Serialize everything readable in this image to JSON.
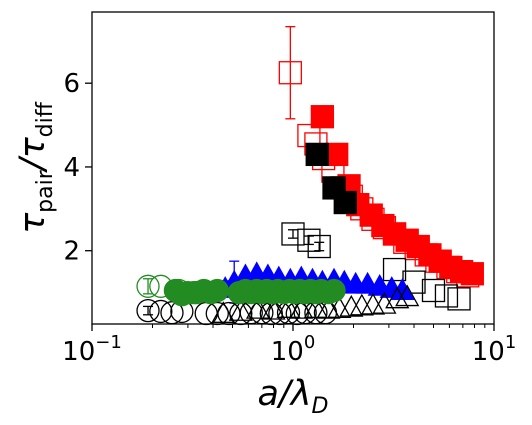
{
  "chart_data": {
    "type": "scatter",
    "x_scale": "log",
    "xlim": [
      0.1,
      10
    ],
    "ylim": [
      0.25,
      7.7
    ],
    "x_ticks": [
      {
        "value": 0.1,
        "base": "10",
        "exp": "−1"
      },
      {
        "value": 1,
        "base": "10",
        "exp": "0"
      },
      {
        "value": 10,
        "base": "10",
        "exp": "1"
      }
    ],
    "y_ticks": [
      {
        "value": 2,
        "label": "2"
      },
      {
        "value": 4,
        "label": "4"
      },
      {
        "value": 6,
        "label": "6"
      }
    ],
    "xlabel": {
      "main": "a/λ",
      "sub": "D"
    },
    "ylabel": {
      "tau": "τ",
      "sub1": "pair",
      "slash": "/",
      "sub2": "diff"
    },
    "grid": false,
    "series": [
      {
        "marker": "square",
        "filled": false,
        "color": "#ff0000",
        "points": [
          {
            "x": 0.97,
            "y": 6.25,
            "err": 1.1
          },
          {
            "x": 1.2,
            "y": 4.75
          },
          {
            "x": 1.3,
            "y": 4.55
          },
          {
            "x": 1.42,
            "y": 4.2
          },
          {
            "x": 1.58,
            "y": 3.9
          },
          {
            "x": 1.75,
            "y": 3.5
          },
          {
            "x": 1.95,
            "y": 3.3
          },
          {
            "x": 2.2,
            "y": 3.0
          },
          {
            "x": 2.5,
            "y": 2.75
          },
          {
            "x": 2.85,
            "y": 2.55
          },
          {
            "x": 3.2,
            "y": 2.4
          },
          {
            "x": 3.6,
            "y": 2.2
          },
          {
            "x": 4.1,
            "y": 2.05
          },
          {
            "x": 4.6,
            "y": 1.9
          },
          {
            "x": 5.2,
            "y": 1.75
          },
          {
            "x": 5.9,
            "y": 1.6
          },
          {
            "x": 6.6,
            "y": 1.5
          },
          {
            "x": 7.4,
            "y": 1.4
          }
        ]
      },
      {
        "marker": "square",
        "filled": true,
        "color": "#ff0000",
        "points": [
          {
            "x": 1.4,
            "y": 5.2
          },
          {
            "x": 1.65,
            "y": 4.3
          },
          {
            "x": 1.9,
            "y": 3.55
          },
          {
            "x": 2.1,
            "y": 3.1
          },
          {
            "x": 2.45,
            "y": 2.85
          },
          {
            "x": 2.8,
            "y": 2.6
          },
          {
            "x": 3.2,
            "y": 2.4
          },
          {
            "x": 3.7,
            "y": 2.25
          },
          {
            "x": 4.2,
            "y": 2.1
          },
          {
            "x": 4.8,
            "y": 1.9
          },
          {
            "x": 5.4,
            "y": 1.75
          },
          {
            "x": 6.1,
            "y": 1.6
          },
          {
            "x": 6.9,
            "y": 1.5
          },
          {
            "x": 7.8,
            "y": 1.45
          }
        ]
      },
      {
        "marker": "square",
        "filled": true,
        "color": "#000000",
        "points": [
          {
            "x": 1.32,
            "y": 4.3
          },
          {
            "x": 1.6,
            "y": 3.5
          },
          {
            "x": 1.82,
            "y": 3.15
          }
        ]
      },
      {
        "marker": "square",
        "filled": false,
        "color": "#000000",
        "points": [
          {
            "x": 1.0,
            "y": 2.4,
            "err": 0.1
          },
          {
            "x": 1.2,
            "y": 2.25,
            "err": 0.1
          },
          {
            "x": 1.35,
            "y": 2.1,
            "err": 0.1
          },
          {
            "x": 3.2,
            "y": 1.55
          },
          {
            "x": 4.0,
            "y": 1.25
          },
          {
            "x": 5.0,
            "y": 1.05
          },
          {
            "x": 5.8,
            "y": 0.92
          },
          {
            "x": 6.7,
            "y": 0.85
          }
        ]
      },
      {
        "marker": "triangle",
        "filled": true,
        "color": "#0000ff",
        "points": [
          {
            "x": 0.46,
            "y": 1.1,
            "err": 0.18
          },
          {
            "x": 0.51,
            "y": 1.25,
            "err": 0.5
          },
          {
            "x": 0.58,
            "y": 1.4
          },
          {
            "x": 0.66,
            "y": 1.45
          },
          {
            "x": 0.75,
            "y": 1.4
          },
          {
            "x": 0.85,
            "y": 1.35
          },
          {
            "x": 0.97,
            "y": 1.3
          },
          {
            "x": 1.1,
            "y": 1.35
          },
          {
            "x": 1.25,
            "y": 1.3
          },
          {
            "x": 1.4,
            "y": 1.25
          },
          {
            "x": 1.6,
            "y": 1.3
          },
          {
            "x": 1.8,
            "y": 1.25
          },
          {
            "x": 2.05,
            "y": 1.2
          },
          {
            "x": 2.35,
            "y": 1.2
          },
          {
            "x": 2.7,
            "y": 1.15
          },
          {
            "x": 3.1,
            "y": 1.1
          },
          {
            "x": 3.5,
            "y": 1.05
          }
        ]
      },
      {
        "marker": "triangle",
        "filled": false,
        "color": "#000000",
        "points": [
          {
            "x": 0.45,
            "y": 0.5
          },
          {
            "x": 0.55,
            "y": 0.55
          },
          {
            "x": 0.67,
            "y": 0.6
          },
          {
            "x": 0.8,
            "y": 0.58
          },
          {
            "x": 0.95,
            "y": 0.62
          },
          {
            "x": 1.1,
            "y": 0.6
          },
          {
            "x": 1.3,
            "y": 0.62
          },
          {
            "x": 1.5,
            "y": 0.6
          },
          {
            "x": 1.7,
            "y": 0.62
          },
          {
            "x": 1.95,
            "y": 0.65
          },
          {
            "x": 2.2,
            "y": 0.68
          },
          {
            "x": 2.5,
            "y": 0.7
          },
          {
            "x": 2.85,
            "y": 0.72
          },
          {
            "x": 3.3,
            "y": 0.85
          },
          {
            "x": 3.7,
            "y": 0.9
          }
        ]
      },
      {
        "marker": "circle",
        "filled": false,
        "color": "#000000",
        "points": [
          {
            "x": 0.19,
            "y": 0.57,
            "err": 0.1
          },
          {
            "x": 0.22,
            "y": 0.55
          },
          {
            "x": 0.25,
            "y": 0.52
          },
          {
            "x": 0.28,
            "y": 0.55
          },
          {
            "x": 0.37,
            "y": 0.5
          },
          {
            "x": 0.42,
            "y": 0.5
          },
          {
            "x": 0.48,
            "y": 0.5
          },
          {
            "x": 0.55,
            "y": 0.5
          },
          {
            "x": 0.62,
            "y": 0.52
          },
          {
            "x": 0.7,
            "y": 0.52
          },
          {
            "x": 0.78,
            "y": 0.5
          },
          {
            "x": 0.86,
            "y": 0.5
          },
          {
            "x": 0.95,
            "y": 0.52
          },
          {
            "x": 1.05,
            "y": 0.5
          },
          {
            "x": 1.15,
            "y": 0.52
          },
          {
            "x": 1.3,
            "y": 0.52
          },
          {
            "x": 1.45,
            "y": 0.52
          }
        ]
      },
      {
        "marker": "circle",
        "filled": false,
        "color": "#228b22",
        "points": [
          {
            "x": 0.19,
            "y": 1.15,
            "err": 0.18
          },
          {
            "x": 0.22,
            "y": 1.15
          },
          {
            "x": 0.27,
            "y": 1.05
          },
          {
            "x": 0.32,
            "y": 1.0
          }
        ]
      },
      {
        "marker": "circle",
        "filled": true,
        "color": "#228b22",
        "points": [
          {
            "x": 0.26,
            "y": 1.05
          },
          {
            "x": 0.28,
            "y": 0.95
          },
          {
            "x": 0.3,
            "y": 1.0
          },
          {
            "x": 0.33,
            "y": 1.0
          },
          {
            "x": 0.36,
            "y": 1.05
          },
          {
            "x": 0.39,
            "y": 1.0
          },
          {
            "x": 0.42,
            "y": 1.05
          },
          {
            "x": 0.54,
            "y": 1.0
          },
          {
            "x": 0.58,
            "y": 1.05
          },
          {
            "x": 0.62,
            "y": 1.0
          },
          {
            "x": 0.66,
            "y": 1.05
          },
          {
            "x": 0.7,
            "y": 1.0
          },
          {
            "x": 0.74,
            "y": 1.05
          },
          {
            "x": 0.79,
            "y": 1.0
          },
          {
            "x": 0.84,
            "y": 1.05
          },
          {
            "x": 0.9,
            "y": 1.0
          },
          {
            "x": 0.96,
            "y": 1.05
          },
          {
            "x": 1.02,
            "y": 1.0
          },
          {
            "x": 1.08,
            "y": 1.05
          },
          {
            "x": 1.15,
            "y": 1.0
          },
          {
            "x": 1.22,
            "y": 1.05
          },
          {
            "x": 1.3,
            "y": 1.0
          },
          {
            "x": 1.38,
            "y": 1.05
          },
          {
            "x": 1.5,
            "y": 1.0
          },
          {
            "x": 1.6,
            "y": 1.05
          }
        ]
      }
    ]
  }
}
